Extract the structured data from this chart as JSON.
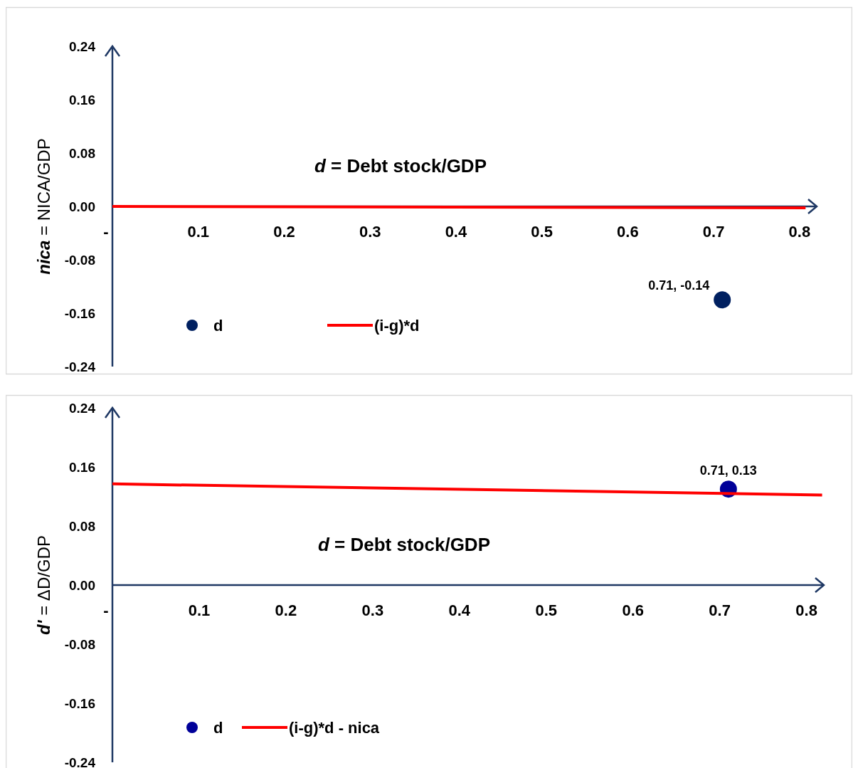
{
  "chart_data": [
    {
      "type": "scatter",
      "xlabel": "d = Debt stock/GDP",
      "ylabel": "nica = NICA/GDP",
      "xlim": [
        0,
        0.82
      ],
      "ylim": [
        -0.24,
        0.24
      ],
      "xticks": [
        {
          "value": 0,
          "label": "-"
        },
        0.1,
        0.2,
        0.3,
        0.4,
        0.5,
        0.6,
        0.7,
        0.8
      ],
      "yticks": [
        -0.24,
        -0.16,
        -0.08,
        {
          "value": 0,
          "label": "0.00"
        },
        0.08,
        0.16,
        0.24
      ],
      "series": [
        {
          "name": "d",
          "color": "#002060",
          "x": [
            0.71
          ],
          "values": [
            -0.14
          ],
          "value_labels": [
            "0.71, -0.14"
          ],
          "marker": "circle"
        },
        {
          "name": "(i-g)*d",
          "type": "line",
          "color": "#ff0000",
          "x": [
            0,
            0.807
          ],
          "values": [
            0,
            -0.002
          ]
        }
      ],
      "legend": "bottom left",
      "grid": false
    },
    {
      "type": "scatter",
      "xlabel": "d = Debt stock/GDP",
      "ylabel": "d' = ΔD/GDP",
      "xlim": [
        0,
        0.82
      ],
      "ylim": [
        -0.24,
        0.24
      ],
      "xticks": [
        {
          "value": 0,
          "label": "-"
        },
        0.1,
        0.2,
        0.3,
        0.4,
        0.5,
        0.6,
        0.7,
        0.8
      ],
      "yticks": [
        -0.24,
        -0.16,
        -0.08,
        {
          "value": 0,
          "label": "0.00"
        },
        0.08,
        0.16,
        0.24
      ],
      "series": [
        {
          "name": "d",
          "color": "#000099",
          "x": [
            0.71
          ],
          "values": [
            0.13
          ],
          "value_labels": [
            "0.71, 0.13"
          ],
          "marker": "circle"
        },
        {
          "name": "(i-g)*d - nica",
          "type": "line",
          "color": "#ff0000",
          "x": [
            0,
            0.818
          ],
          "values": [
            0.137,
            0.122
          ]
        }
      ],
      "legend": "bottom left",
      "grid": false
    }
  ]
}
